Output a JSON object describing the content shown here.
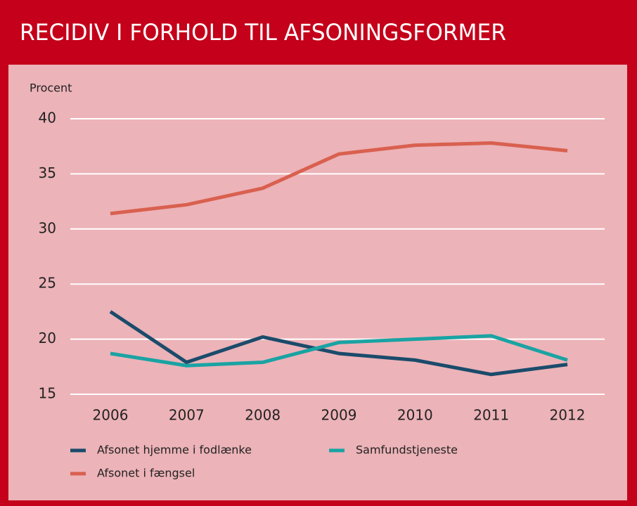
{
  "chart_data": {
    "type": "line",
    "title": "RECIDIV I FORHOLD TIL AFSONINGSFORMER",
    "y_label": "Procent",
    "categories": [
      "2006",
      "2007",
      "2008",
      "2009",
      "2010",
      "2011",
      "2012"
    ],
    "series": [
      {
        "name": "Afsonet hjemme i fodlænke",
        "color": "#1b4b6b",
        "values": [
          22.5,
          17.9,
          20.2,
          18.7,
          18.1,
          16.8,
          17.7
        ]
      },
      {
        "name": "Samfundstjeneste",
        "color": "#1aa3a3",
        "values": [
          18.7,
          17.6,
          17.9,
          19.7,
          20.0,
          20.3,
          18.1
        ]
      },
      {
        "name": "Afsonet i fængsel",
        "color": "#d9604f",
        "values": [
          31.4,
          32.2,
          33.7,
          36.8,
          37.6,
          37.8,
          37.1
        ]
      }
    ],
    "ylim": [
      15,
      40
    ],
    "yticks": [
      15,
      20,
      25,
      30,
      35,
      40
    ],
    "grid": true
  }
}
